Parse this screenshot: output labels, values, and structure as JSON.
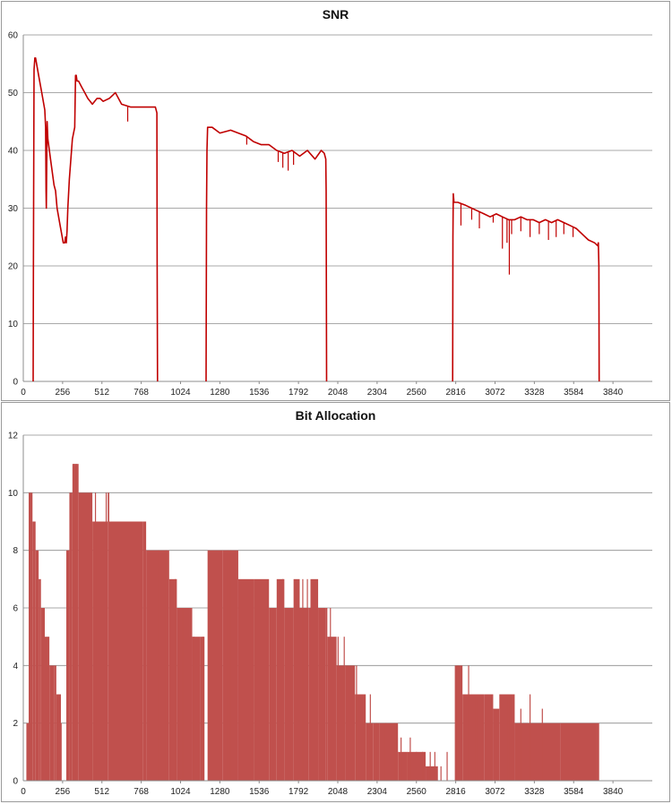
{
  "colors": {
    "snr_line": "#c00000",
    "bits_fill": "#c0504d",
    "grid": "#8c8c8c"
  },
  "chart_data": [
    {
      "type": "line",
      "title": "SNR",
      "xlabel": "",
      "ylabel": "",
      "xlim": [
        0,
        4096
      ],
      "ylim": [
        0,
        60
      ],
      "xticks": [
        256,
        512,
        768,
        1024,
        1280,
        1536,
        1792,
        2048,
        2304,
        2560,
        2816,
        3072,
        3328,
        3584,
        3840
      ],
      "yticks": [
        0,
        10,
        20,
        30,
        40,
        50,
        60
      ],
      "grid": true,
      "segments": [
        {
          "x": [
            64,
            66,
            70,
            75,
            80,
            100,
            120,
            140,
            145,
            148,
            150,
            155,
            160,
            180,
            200,
            210,
            220,
            240,
            260,
            270,
            275,
            280,
            285,
            290,
            300,
            320,
            335,
            340,
            345,
            350,
            360,
            380,
            400,
            420,
            450,
            480,
            500,
            520,
            560,
            600,
            640,
            700,
            760,
            800,
            840,
            860,
            870,
            872,
            874
          ],
          "y": [
            0,
            20,
            54,
            56,
            56,
            53,
            50,
            47,
            44,
            33,
            30,
            45,
            42,
            38,
            34,
            33,
            30,
            27,
            24,
            24,
            25,
            24,
            26,
            30,
            35,
            42,
            44,
            53,
            53,
            52,
            52,
            51,
            50,
            49,
            48,
            49,
            49,
            48.5,
            49,
            50,
            48,
            47.5,
            47.5,
            47.5,
            47.5,
            47.5,
            46.5,
            20,
            0
          ]
        },
        {
          "x": [
            1190,
            1193,
            1196,
            1200,
            1230,
            1280,
            1350,
            1400,
            1450,
            1500,
            1550,
            1600,
            1650,
            1700,
            1750,
            1800,
            1850,
            1900,
            1940,
            1960,
            1970,
            1972,
            1975
          ],
          "y": [
            0,
            30,
            40,
            44,
            44,
            43,
            43.5,
            43,
            42.5,
            41.5,
            41,
            41,
            40,
            39.5,
            40,
            39,
            40,
            38.5,
            40,
            39.5,
            38.5,
            33,
            0
          ]
        },
        {
          "x": [
            2796,
            2798,
            2800,
            2805,
            2830,
            2880,
            2920,
            2960,
            3000,
            3040,
            3080,
            3120,
            3160,
            3200,
            3240,
            3280,
            3320,
            3360,
            3400,
            3440,
            3480,
            3520,
            3560,
            3600,
            3640,
            3680,
            3720,
            3740,
            3745,
            3748,
            3750
          ],
          "y": [
            0,
            25,
            32.5,
            31,
            31,
            30.5,
            30,
            29.5,
            29,
            28.5,
            29,
            28.5,
            28,
            28,
            28.5,
            28,
            28,
            27.5,
            28,
            27.5,
            28,
            27.5,
            27,
            26.5,
            25.5,
            24.5,
            24,
            23.5,
            24,
            20,
            0
          ]
        }
      ],
      "dips": [
        [
          680,
          45
        ],
        [
          1455,
          41
        ],
        [
          1660,
          38
        ],
        [
          1690,
          37
        ],
        [
          1725,
          36.5
        ],
        [
          1760,
          37.5
        ],
        [
          2850,
          27
        ],
        [
          2920,
          28
        ],
        [
          2970,
          26.5
        ],
        [
          3060,
          27.5
        ],
        [
          3120,
          23
        ],
        [
          3150,
          24
        ],
        [
          3165,
          18.5
        ],
        [
          3180,
          25.5
        ],
        [
          3240,
          26
        ],
        [
          3300,
          25
        ],
        [
          3360,
          25.5
        ],
        [
          3420,
          24.5
        ],
        [
          3470,
          25
        ],
        [
          3520,
          25.5
        ],
        [
          3580,
          25
        ]
      ]
    },
    {
      "type": "bar",
      "title": "Bit Allocation",
      "xlabel": "",
      "ylabel": "",
      "xlim": [
        0,
        4096
      ],
      "ylim": [
        0,
        12
      ],
      "xticks": [
        256,
        512,
        768,
        1024,
        1280,
        1536,
        1792,
        2048,
        2304,
        2560,
        2816,
        3072,
        3328,
        3584,
        3840
      ],
      "yticks": [
        0,
        2,
        4,
        6,
        8,
        10,
        12
      ],
      "grid": true,
      "steps": [
        [
          10,
          0
        ],
        [
          20,
          2
        ],
        [
          35,
          10
        ],
        [
          60,
          9
        ],
        [
          80,
          8
        ],
        [
          100,
          7
        ],
        [
          115,
          6
        ],
        [
          140,
          5
        ],
        [
          170,
          4
        ],
        [
          200,
          4
        ],
        [
          215,
          3
        ],
        [
          245,
          2
        ],
        [
          250,
          0
        ],
        [
          280,
          8
        ],
        [
          300,
          10
        ],
        [
          320,
          11
        ],
        [
          360,
          10
        ],
        [
          450,
          9
        ],
        [
          550,
          10
        ],
        [
          560,
          9
        ],
        [
          780,
          9
        ],
        [
          800,
          8
        ],
        [
          950,
          7
        ],
        [
          1000,
          6
        ],
        [
          1100,
          5
        ],
        [
          1150,
          5
        ],
        [
          1180,
          0
        ],
        [
          1200,
          8
        ],
        [
          1300,
          8
        ],
        [
          1400,
          7
        ],
        [
          1500,
          7
        ],
        [
          1600,
          6
        ],
        [
          1650,
          7
        ],
        [
          1700,
          6
        ],
        [
          1760,
          7
        ],
        [
          1800,
          6
        ],
        [
          1860,
          6
        ],
        [
          1870,
          7
        ],
        [
          1920,
          6
        ],
        [
          1970,
          6
        ],
        [
          1980,
          5
        ],
        [
          2040,
          4
        ],
        [
          2100,
          4
        ],
        [
          2160,
          3
        ],
        [
          2230,
          2
        ],
        [
          2280,
          2
        ],
        [
          2320,
          2
        ],
        [
          2440,
          1
        ],
        [
          2500,
          1
        ],
        [
          2620,
          0.5
        ],
        [
          2700,
          0
        ],
        [
          2790,
          0
        ],
        [
          2810,
          4
        ],
        [
          2860,
          3
        ],
        [
          3000,
          3
        ],
        [
          3060,
          2.5
        ],
        [
          3100,
          3
        ],
        [
          3200,
          2
        ],
        [
          3500,
          2
        ],
        [
          3740,
          2
        ],
        [
          3750,
          0
        ],
        [
          4096,
          0
        ]
      ],
      "spikes": [
        [
          330,
          11
        ],
        [
          345,
          11
        ],
        [
          470,
          10
        ],
        [
          540,
          10
        ],
        [
          880,
          8
        ],
        [
          930,
          8
        ],
        [
          990,
          7
        ],
        [
          1040,
          6
        ],
        [
          1110,
          5
        ],
        [
          1170,
          5
        ],
        [
          1330,
          8
        ],
        [
          1350,
          8
        ],
        [
          1690,
          7
        ],
        [
          1820,
          7
        ],
        [
          1850,
          7
        ],
        [
          2000,
          6
        ],
        [
          2050,
          5
        ],
        [
          2090,
          5
        ],
        [
          2170,
          4
        ],
        [
          2220,
          3
        ],
        [
          2260,
          3
        ],
        [
          2300,
          2
        ],
        [
          2360,
          2
        ],
        [
          2420,
          2
        ],
        [
          2460,
          1.5
        ],
        [
          2520,
          1.5
        ],
        [
          2560,
          1
        ],
        [
          2600,
          1
        ],
        [
          2650,
          1
        ],
        [
          2680,
          1
        ],
        [
          2720,
          0.5
        ],
        [
          2760,
          1
        ],
        [
          2830,
          4
        ],
        [
          2900,
          4
        ],
        [
          2950,
          3
        ],
        [
          3120,
          3
        ],
        [
          3160,
          3
        ],
        [
          3240,
          2.5
        ],
        [
          3300,
          3
        ],
        [
          3380,
          2.5
        ]
      ]
    }
  ]
}
